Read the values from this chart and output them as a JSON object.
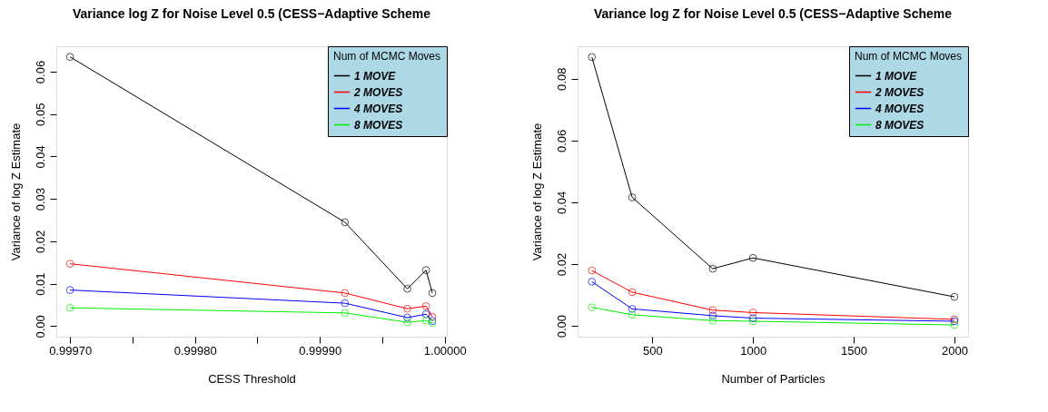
{
  "chart_data": [
    {
      "type": "line",
      "title": "Variance log Z for Noise Level 0.5 (CESS−Adaptive Scheme",
      "xlabel": "CESS Threshold",
      "ylabel": "Variance of log Z Estimate",
      "legend_title": "Num of MCMC Moves",
      "legend": "top right",
      "grid": false,
      "marker": "circle",
      "line_style": "solid",
      "x": [
        0.9997,
        0.99992,
        0.99997,
        0.999985,
        0.99999
      ],
      "xlim": [
        0.999689,
        1.0000016
      ],
      "xticks": [
        {
          "value": 0.9997,
          "label": "0.99970"
        },
        {
          "value": 0.99975,
          "label": null
        },
        {
          "value": 0.9998,
          "label": "0.99980"
        },
        {
          "value": 0.99985,
          "label": null
        },
        {
          "value": 0.9999,
          "label": "0.99990"
        },
        {
          "value": 0.99995,
          "label": null
        },
        {
          "value": 1.0,
          "label": "1.00000"
        }
      ],
      "ylim": [
        -0.0025,
        0.066
      ],
      "yticks": [
        {
          "value": 0,
          "label": "0.00"
        },
        0.01,
        0.02,
        0.03,
        0.04,
        0.05,
        0.06
      ],
      "series": [
        {
          "name": "1 MOVE",
          "color": "#000000",
          "values": [
            0.0635,
            0.0245,
            0.0088,
            0.0132,
            0.0078
          ]
        },
        {
          "name": "2 MOVES",
          "color": "#ff0000",
          "values": [
            0.0147,
            0.0078,
            0.0041,
            0.0047,
            0.0022
          ]
        },
        {
          "name": "4 MOVES",
          "color": "#0000ff",
          "values": [
            0.0085,
            0.0054,
            0.002,
            0.0028,
            0.0012
          ]
        },
        {
          "name": "8 MOVES",
          "color": "#00ee00",
          "values": [
            0.0043,
            0.0031,
            0.0009,
            0.0013,
            0.0007
          ]
        }
      ]
    },
    {
      "type": "line",
      "title": "Variance log Z for Noise Level 0.5 (CESS−Adaptive Scheme",
      "xlabel": "Number of Particles",
      "ylabel": "Variance of log Z Estimate",
      "legend_title": "Num of MCMC Moves",
      "legend": "top right",
      "grid": false,
      "marker": "circle",
      "line_style": "solid",
      "x": [
        200,
        400,
        800,
        1000,
        2000
      ],
      "xlim": [
        129,
        2068
      ],
      "xticks": [
        500,
        1000,
        1500,
        2000
      ],
      "ylim": [
        -0.0035,
        0.0905
      ],
      "yticks": [
        {
          "value": 0,
          "label": "0.00"
        },
        0.02,
        0.04,
        0.06,
        0.08
      ],
      "series": [
        {
          "name": "1 MOVE",
          "color": "#000000",
          "values": [
            0.087,
            0.0416,
            0.0185,
            0.022,
            0.0094
          ]
        },
        {
          "name": "2 MOVES",
          "color": "#ff0000",
          "values": [
            0.0179,
            0.0109,
            0.0051,
            0.0043,
            0.0021
          ]
        },
        {
          "name": "4 MOVES",
          "color": "#0000ff",
          "values": [
            0.0143,
            0.0055,
            0.0033,
            0.0025,
            0.0015
          ]
        },
        {
          "name": "8 MOVES",
          "color": "#00ee00",
          "values": [
            0.006,
            0.0036,
            0.0017,
            0.0015,
            0.0003
          ]
        }
      ]
    }
  ]
}
